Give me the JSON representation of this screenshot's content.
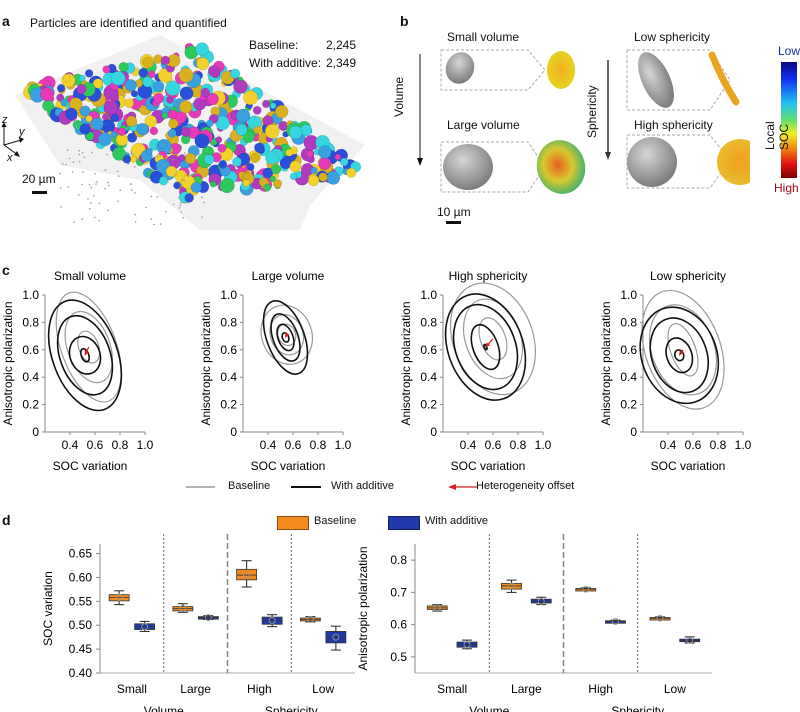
{
  "panel_a": {
    "label": "a",
    "title": "Particles are identified and quantified",
    "counts": [
      {
        "label": "Baseline:",
        "value": "2,245"
      },
      {
        "label": "With additive:",
        "value": "2,349"
      }
    ],
    "axes": {
      "z": "z",
      "y": "y",
      "x": "x"
    },
    "scale_bar": "20 µm",
    "particle_colors": [
      "#e83ab8",
      "#2a4fd8",
      "#f2d22a",
      "#2ec85c",
      "#35d6e0",
      "#d8b020",
      "#3aa0e0",
      "#b03ac0"
    ]
  },
  "panel_b": {
    "label": "b",
    "volume_axis": "Volume",
    "sphericity_axis": "Sphericity",
    "items": [
      {
        "title": "Small volume"
      },
      {
        "title": "Large volume"
      },
      {
        "title": "Low sphericity"
      },
      {
        "title": "High sphericity"
      }
    ],
    "scale_bar": "10 µm",
    "colorbar": {
      "title": "Local SOC",
      "low": "Low",
      "high": "High",
      "low_color": "#1a2fa0",
      "high_color": "#a01010"
    }
  },
  "panel_c_label": "c",
  "panel_d_label": "d",
  "legend_c": {
    "baseline": "Baseline",
    "additive": "With additive",
    "offset": "Heterogeneity offset"
  },
  "legend_d": {
    "baseline": "Baseline",
    "additive": "With additive"
  },
  "colors": {
    "baseline_line": "#9a9a9a",
    "additive_line": "#111111",
    "offset_arrow": "#d42020",
    "baseline_box": "#f28a1e",
    "additive_box": "#1f3aa8"
  },
  "chart_data": [
    {
      "type": "contour",
      "title": "Small volume",
      "xlabel": "SOC variation",
      "ylabel": "Anisotropic polarization",
      "xlim": [
        0.2,
        1.0
      ],
      "ylim": [
        0,
        1.0
      ],
      "xticks": [
        "0.4",
        "0.6",
        "0.8",
        "1.0"
      ],
      "yticks": [
        "0",
        "0.2",
        "0.4",
        "0.6",
        "0.8",
        "1.0"
      ],
      "baseline_center": [
        0.55,
        0.62
      ],
      "additive_center": [
        0.52,
        0.56
      ],
      "baseline_levels": [
        {
          "rx": 0.22,
          "ry": 0.42
        },
        {
          "rx": 0.17,
          "ry": 0.27
        },
        {
          "rx": 0.08,
          "ry": 0.12
        }
      ],
      "additive_levels": [
        {
          "rx": 0.26,
          "ry": 0.42
        },
        {
          "rx": 0.2,
          "ry": 0.3
        },
        {
          "rx": 0.12,
          "ry": 0.14
        },
        {
          "rx": 0.03,
          "ry": 0.05
        }
      ]
    },
    {
      "type": "contour",
      "title": "Large volume",
      "xlabel": "SOC variation",
      "ylabel": "Anisotropic polarization",
      "xlim": [
        0.2,
        1.0
      ],
      "ylim": [
        0,
        1.0
      ],
      "xticks": [
        "0.4",
        "0.6",
        "0.8",
        "1.0"
      ],
      "yticks": [
        "0",
        "0.2",
        "0.4",
        "0.6",
        "0.8",
        "1.0"
      ],
      "baseline_center": [
        0.55,
        0.71
      ],
      "additive_center": [
        0.54,
        0.69
      ],
      "baseline_levels": [
        {
          "rx": 0.2,
          "ry": 0.22
        },
        {
          "rx": 0.13,
          "ry": 0.15
        },
        {
          "rx": 0.07,
          "ry": 0.08
        }
      ],
      "additive_levels": [
        {
          "rx": 0.15,
          "ry": 0.28
        },
        {
          "rx": 0.1,
          "ry": 0.18
        },
        {
          "rx": 0.06,
          "ry": 0.1
        },
        {
          "rx": 0.025,
          "ry": 0.035
        }
      ]
    },
    {
      "type": "contour",
      "title": "High sphericity",
      "xlabel": "SOC variation",
      "ylabel": "Anisotropic polarization",
      "xlim": [
        0.2,
        1.0
      ],
      "ylim": [
        0,
        1.0
      ],
      "xticks": [
        "0.4",
        "0.6",
        "0.8",
        "1.0"
      ],
      "yticks": [
        "0",
        "0.2",
        "0.4",
        "0.6",
        "0.8",
        "1.0"
      ],
      "baseline_center": [
        0.6,
        0.68
      ],
      "additive_center": [
        0.54,
        0.62
      ],
      "baseline_levels": [
        {
          "rx": 0.32,
          "ry": 0.42
        },
        {
          "rx": 0.22,
          "ry": 0.3
        },
        {
          "rx": 0.1,
          "ry": 0.16
        }
      ],
      "additive_levels": [
        {
          "rx": 0.3,
          "ry": 0.4
        },
        {
          "rx": 0.24,
          "ry": 0.32
        },
        {
          "rx": 0.1,
          "ry": 0.17
        },
        {
          "rx": 0.01,
          "ry": 0.02
        }
      ]
    },
    {
      "type": "contour",
      "title": "Low sphericity",
      "xlabel": "SOC variation",
      "ylabel": "Anisotropic polarization",
      "xlim": [
        0.2,
        1.0
      ],
      "ylim": [
        0,
        1.0
      ],
      "xticks": [
        "0.4",
        "0.6",
        "0.8",
        "1.0"
      ],
      "yticks": [
        "0",
        "0.2",
        "0.4",
        "0.6",
        "0.8",
        "1.0"
      ],
      "baseline_center": [
        0.52,
        0.6
      ],
      "additive_center": [
        0.49,
        0.56
      ],
      "baseline_levels": [
        {
          "rx": 0.3,
          "ry": 0.45
        },
        {
          "rx": 0.25,
          "ry": 0.34
        },
        {
          "rx": 0.1,
          "ry": 0.2
        }
      ],
      "additive_levels": [
        {
          "rx": 0.3,
          "ry": 0.36
        },
        {
          "rx": 0.22,
          "ry": 0.28
        },
        {
          "rx": 0.1,
          "ry": 0.13
        },
        {
          "rx": 0.035,
          "ry": 0.04
        }
      ]
    },
    {
      "type": "box",
      "ylabel": "SOC variation",
      "ylim": [
        0.4,
        0.67
      ],
      "yticks": [
        "0.40",
        "0.45",
        "0.50",
        "0.55",
        "0.60",
        "0.65"
      ],
      "groups": [
        {
          "name": "Volume",
          "categories": [
            "Small",
            "Large"
          ]
        },
        {
          "name": "Sphericity",
          "categories": [
            "High",
            "Low"
          ]
        }
      ],
      "series": [
        {
          "name": "Baseline",
          "boxes": [
            {
              "min": 0.543,
              "q1": 0.551,
              "median": 0.558,
              "q3": 0.564,
              "max": 0.572
            },
            {
              "min": 0.527,
              "q1": 0.53,
              "median": 0.535,
              "q3": 0.539,
              "max": 0.545
            },
            {
              "min": 0.58,
              "q1": 0.595,
              "median": 0.605,
              "q3": 0.617,
              "max": 0.635
            },
            {
              "min": 0.507,
              "q1": 0.509,
              "median": 0.512,
              "q3": 0.515,
              "max": 0.518
            }
          ]
        },
        {
          "name": "With additive",
          "boxes": [
            {
              "min": 0.487,
              "q1": 0.491,
              "median": 0.497,
              "q3": 0.503,
              "max": 0.508
            },
            {
              "min": 0.512,
              "q1": 0.513,
              "median": 0.516,
              "q3": 0.518,
              "max": 0.52
            },
            {
              "min": 0.497,
              "q1": 0.502,
              "median": 0.51,
              "q3": 0.517,
              "max": 0.522
            },
            {
              "min": 0.448,
              "q1": 0.463,
              "median": 0.475,
              "q3": 0.487,
              "max": 0.498
            }
          ]
        }
      ]
    },
    {
      "type": "box",
      "ylabel": "Anisotropic polarization",
      "ylim": [
        0.45,
        0.85
      ],
      "yticks": [
        "0.5",
        "0.6",
        "0.7",
        "0.8"
      ],
      "groups": [
        {
          "name": "Volume",
          "categories": [
            "Small",
            "Large"
          ]
        },
        {
          "name": "Sphericity",
          "categories": [
            "High",
            "Low"
          ]
        }
      ],
      "series": [
        {
          "name": "Baseline",
          "boxes": [
            {
              "min": 0.642,
              "q1": 0.647,
              "median": 0.652,
              "q3": 0.658,
              "max": 0.662
            },
            {
              "min": 0.7,
              "q1": 0.71,
              "median": 0.72,
              "q3": 0.728,
              "max": 0.738
            },
            {
              "min": 0.706,
              "q1": 0.708,
              "median": 0.71,
              "q3": 0.712,
              "max": 0.714
            },
            {
              "min": 0.616,
              "q1": 0.618,
              "median": 0.62,
              "q3": 0.622,
              "max": 0.624
            }
          ]
        },
        {
          "name": "With additive",
          "boxes": [
            {
              "min": 0.525,
              "q1": 0.53,
              "median": 0.538,
              "q3": 0.546,
              "max": 0.552
            },
            {
              "min": 0.662,
              "q1": 0.667,
              "median": 0.672,
              "q3": 0.679,
              "max": 0.685
            },
            {
              "min": 0.607,
              "q1": 0.608,
              "median": 0.61,
              "q3": 0.612,
              "max": 0.614
            },
            {
              "min": 0.543,
              "q1": 0.547,
              "median": 0.551,
              "q3": 0.555,
              "max": 0.562
            }
          ]
        }
      ]
    }
  ]
}
